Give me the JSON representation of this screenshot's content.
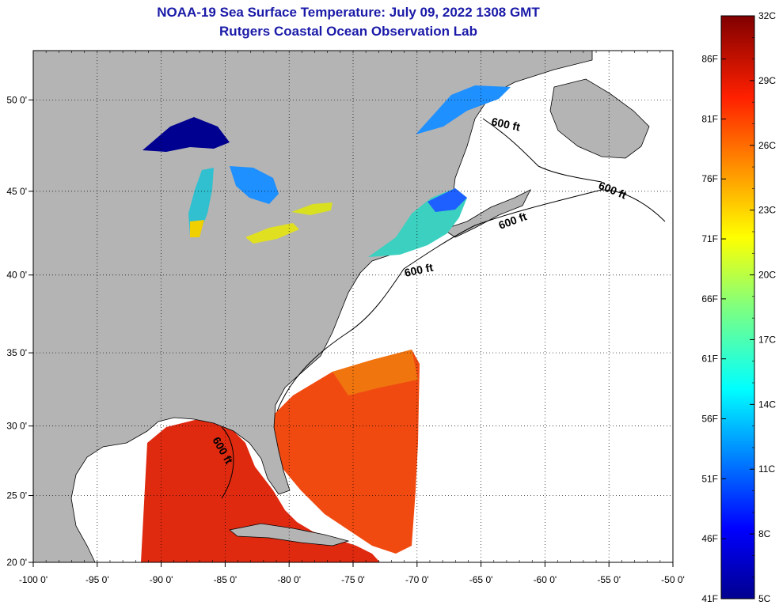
{
  "title": "NOAA-19 Sea Surface Temperature:  July 09, 2022 1308 GMT",
  "subtitle": "Rutgers Coastal Ocean Observation Lab",
  "map": {
    "lon_range": [
      -100,
      -50
    ],
    "lat_range": [
      20,
      52.5
    ],
    "lon_ticks": [
      {
        "value": -100,
        "label": "-100 0'"
      },
      {
        "value": -95,
        "label": "-95 0'"
      },
      {
        "value": -90,
        "label": "-90 0'"
      },
      {
        "value": -85,
        "label": "-85 0'"
      },
      {
        "value": -80,
        "label": "-80 0'"
      },
      {
        "value": -75,
        "label": "-75 0'"
      },
      {
        "value": -70,
        "label": "-70 0'"
      },
      {
        "value": -65,
        "label": "-65 0'"
      },
      {
        "value": -60,
        "label": "-60 0'"
      },
      {
        "value": -55,
        "label": "-55 0'"
      },
      {
        "value": -50,
        "label": "-50 0'"
      }
    ],
    "lat_ticks": [
      {
        "value": 20,
        "label": "20 0'"
      },
      {
        "value": 25,
        "label": "25 0'"
      },
      {
        "value": 30,
        "label": "30 0'"
      },
      {
        "value": 35,
        "label": "35 0'"
      },
      {
        "value": 40,
        "label": "40 0'"
      },
      {
        "value": 45,
        "label": "45 0'"
      },
      {
        "value": 50,
        "label": "50 0'"
      }
    ],
    "contour_labels": [
      "600 ft",
      "600 ft",
      "600 ft",
      "600 ft",
      "600 ft"
    ],
    "colors": {
      "land": "#b4b4b4",
      "no_data": "#ffffff",
      "frame": "#000000"
    }
  },
  "colorbar": {
    "celsius_labels": [
      "32C",
      "29C",
      "26C",
      "23C",
      "20C",
      "17C",
      "14C",
      "11C",
      "8C",
      "5C"
    ],
    "fahrenheit_labels": [
      "86F",
      "81F",
      "76F",
      "71F",
      "66F",
      "61F",
      "56F",
      "51F",
      "46F",
      "41F"
    ],
    "range_c": [
      5,
      32
    ]
  }
}
